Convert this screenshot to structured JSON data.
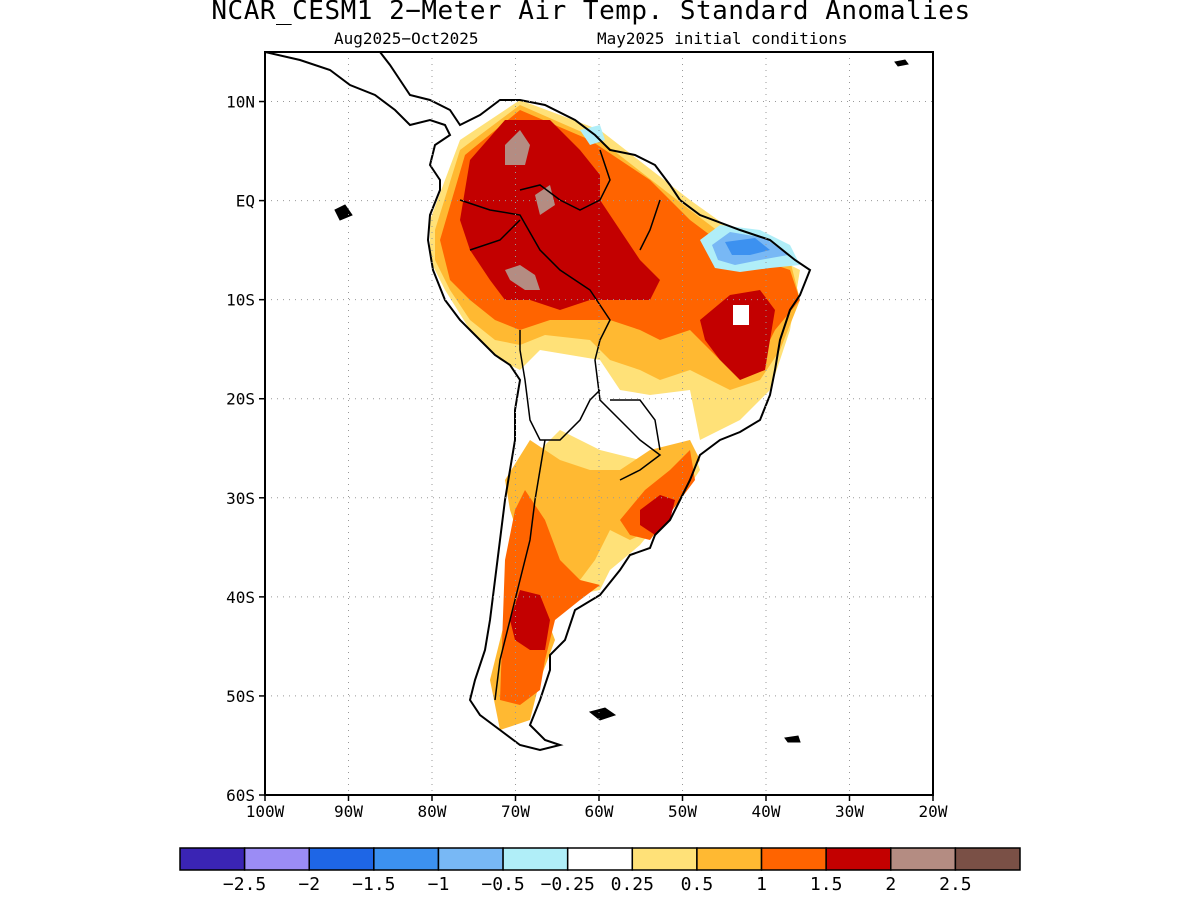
{
  "title": "NCAR_CESM1 2−Meter Air Temp. Standard Anomalies",
  "subtitle_left": "Aug2025−Oct2025",
  "subtitle_right": "May2025 initial conditions",
  "map": {
    "lon_range": [
      -100,
      -20
    ],
    "lat_range": [
      -60,
      15
    ],
    "lat_ticks": [
      {
        "value": 10,
        "label": "10N"
      },
      {
        "value": 0,
        "label": "EQ"
      },
      {
        "value": -10,
        "label": "10S"
      },
      {
        "value": -20,
        "label": "20S"
      },
      {
        "value": -30,
        "label": "30S"
      },
      {
        "value": -40,
        "label": "40S"
      },
      {
        "value": -50,
        "label": "50S"
      },
      {
        "value": -60,
        "label": "60S"
      }
    ],
    "lon_ticks": [
      {
        "value": -100,
        "label": "100W"
      },
      {
        "value": -90,
        "label": "90W"
      },
      {
        "value": -80,
        "label": "80W"
      },
      {
        "value": -70,
        "label": "70W"
      },
      {
        "value": -60,
        "label": "60W"
      },
      {
        "value": -50,
        "label": "50W"
      },
      {
        "value": -40,
        "label": "40W"
      },
      {
        "value": -30,
        "label": "30W"
      },
      {
        "value": -20,
        "label": "20W"
      }
    ],
    "grid": true
  },
  "colorbar": {
    "colors": [
      "#3a24b4",
      "#9b8cf5",
      "#1e66e6",
      "#3c91f0",
      "#78b8f5",
      "#b0eef8",
      "#ffffff",
      "#ffe178",
      "#ffb932",
      "#ff6400",
      "#c30000",
      "#b48c82",
      "#7a5046"
    ],
    "labels": [
      "−2.5",
      "−2",
      "−1.5",
      "−1",
      "−0.5",
      "−0.25",
      "0.25",
      "0.5",
      "1",
      "1.5",
      "2",
      "2.5"
    ]
  },
  "colors": {
    "land_outline": "#000000",
    "grid": "#999999"
  }
}
